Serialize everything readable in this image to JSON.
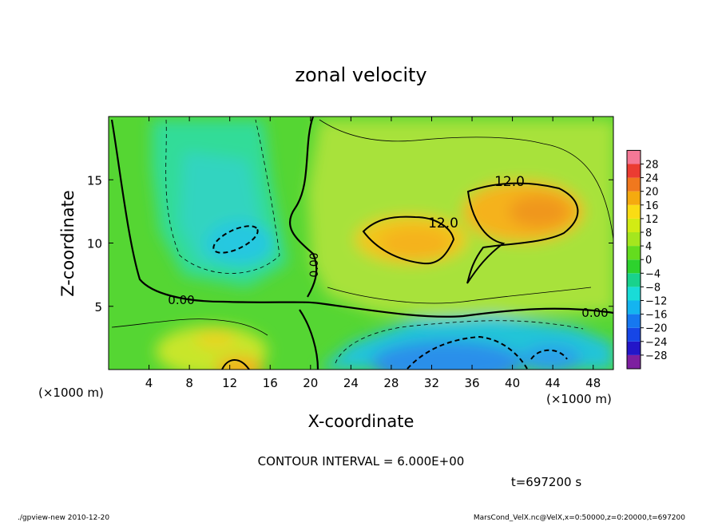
{
  "chart_data": {
    "type": "heatmap",
    "title": "zonal velocity",
    "xlabel": "X-coordinate",
    "ylabel": "Z-coordinate",
    "x_units": "(×1000 m)",
    "y_units": "(×1000 m)",
    "xlim": [
      0,
      50
    ],
    "ylim": [
      0,
      20
    ],
    "x_ticks": [
      4,
      8,
      12,
      16,
      20,
      24,
      28,
      32,
      36,
      40,
      44,
      48
    ],
    "y_ticks": [
      5,
      10,
      15
    ],
    "colorbar": {
      "labels": [
        "28",
        "24",
        "20",
        "16",
        "12",
        "8",
        "4",
        "0",
        "−4",
        "−8",
        "−12",
        "−16",
        "−20",
        "−24",
        "−28"
      ],
      "colors": [
        "#7d1fa0",
        "#2316c8",
        "#1646e6",
        "#1678f0",
        "#14b4f0",
        "#19dcd7",
        "#19d28c",
        "#2dd22d",
        "#64dc1e",
        "#a5e61e",
        "#d2eb14",
        "#fadc14",
        "#f5aa0f",
        "#f0781e",
        "#eb3c32",
        "#f57896"
      ]
    },
    "contour_labels": [
      "12.0",
      "12.0",
      "0.00",
      "0.00",
      "0.00"
    ],
    "contour_interval_text": "CONTOUR INTERVAL = 6.000E+00",
    "time_text": "t=697200 s",
    "footer_left": "./gpview-new   2010-12-20",
    "footer_right": "MarsCond_VelX.nc@VelX,x=0:50000,z=0:20000,t=697200",
    "grid": false,
    "legend": "none"
  }
}
